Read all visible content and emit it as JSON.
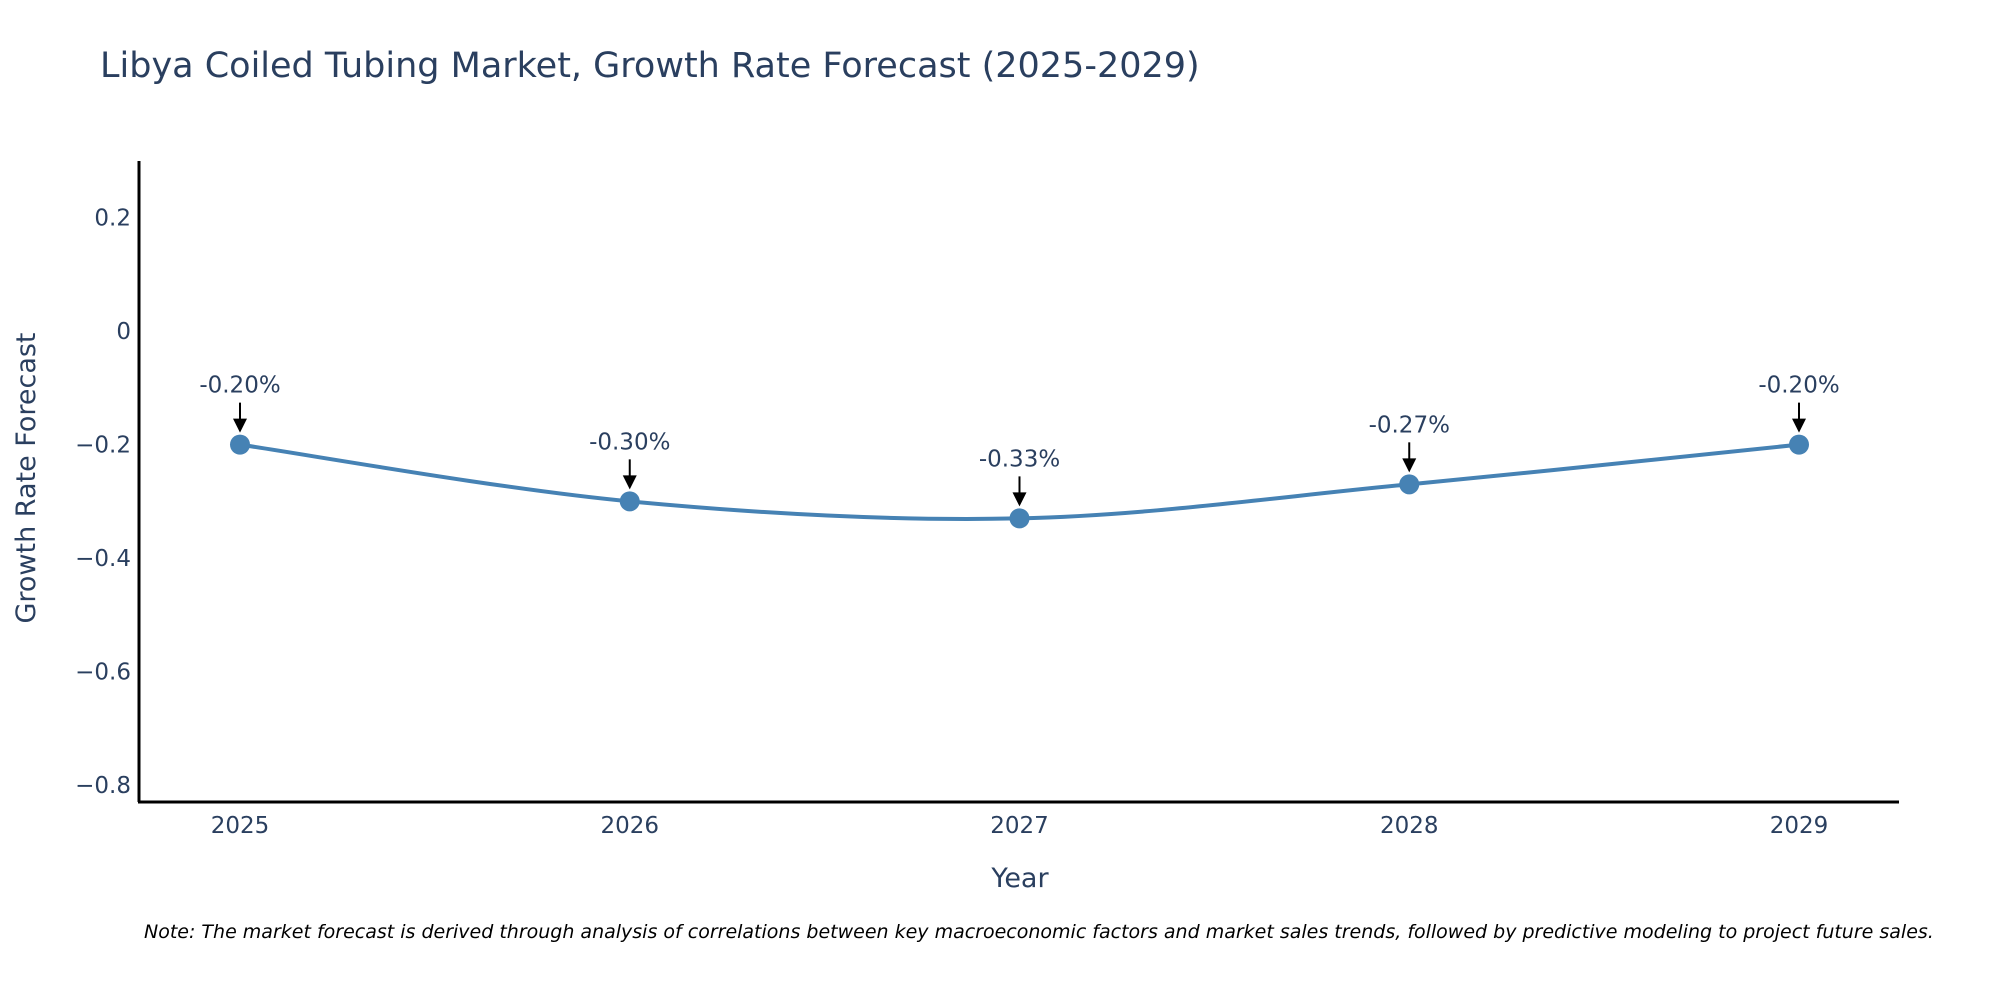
{
  "chart_data": {
    "type": "line",
    "title": "Libya Coiled Tubing Market, Growth Rate Forecast (2025-2029)",
    "xlabel": "Year",
    "ylabel": "Growth Rate Forecast",
    "categories": [
      "2025",
      "2026",
      "2027",
      "2028",
      "2029"
    ],
    "series": [
      {
        "name": "Growth Rate Forecast",
        "values": [
          -0.2,
          -0.3,
          -0.33,
          -0.27,
          -0.2
        ]
      }
    ],
    "annotations": [
      "-0.20%",
      "-0.30%",
      "-0.33%",
      "-0.27%",
      "-0.20%"
    ],
    "ylim": [
      -0.83,
      0.3
    ],
    "yticks": [
      0.2,
      0,
      -0.2,
      -0.4,
      -0.6,
      -0.8
    ],
    "ytick_labels": [
      "0.2",
      "0",
      "−0.2",
      "−0.4",
      "−0.6",
      "−0.8"
    ],
    "line_color": "#4682b4",
    "grid": false,
    "legend": "none",
    "note": "Note: The market forecast is derived through analysis of correlations between key macroeconomic factors and market sales trends, followed by predictive modeling to project future sales."
  }
}
